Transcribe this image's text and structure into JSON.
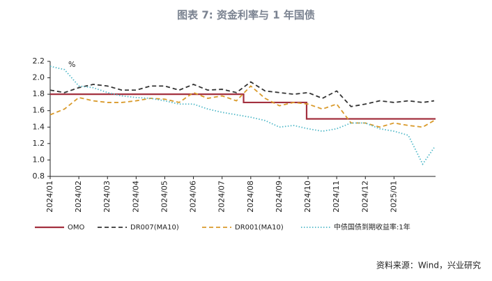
{
  "chart_data": {
    "type": "line",
    "title": "图表 7:  资金利率与 1 年国债",
    "y_unit": "%",
    "source": "资料来源：Wind，兴业研究",
    "xlim": [
      0,
      13.45
    ],
    "xticks": [
      {
        "value": 0,
        "label": "2024/01"
      },
      {
        "value": 1,
        "label": "2024/02"
      },
      {
        "value": 2,
        "label": "2024/03"
      },
      {
        "value": 3,
        "label": "2024/04"
      },
      {
        "value": 4,
        "label": "2024/05"
      },
      {
        "value": 5,
        "label": "2024/06"
      },
      {
        "value": 6,
        "label": "2024/07"
      },
      {
        "value": 7,
        "label": "2024/08"
      },
      {
        "value": 8,
        "label": "2024/09"
      },
      {
        "value": 9,
        "label": "2024/10"
      },
      {
        "value": 10,
        "label": "2024/11"
      },
      {
        "value": 11,
        "label": "2024/12"
      },
      {
        "value": 12,
        "label": "2025/01"
      }
    ],
    "ylim": [
      0.8,
      2.2
    ],
    "yticks": [
      0.8,
      {
        "value": 1.0,
        "label": "1.0"
      },
      1.2,
      1.4,
      1.6,
      1.8,
      {
        "value": 2.0,
        "label": "2.0"
      },
      2.2
    ],
    "x": [
      0,
      0.5,
      1,
      1.5,
      2,
      2.5,
      3,
      3.5,
      4,
      4.5,
      5,
      5.5,
      6,
      6.5,
      7,
      7.5,
      8,
      8.5,
      9,
      9.5,
      10,
      10.5,
      11,
      11.5,
      12,
      12.5,
      13,
      13.4
    ],
    "series": [
      {
        "name": "OMO",
        "color": "#a3303f",
        "dash": "none",
        "width": 2.2,
        "x": [
          0,
          6.75,
          6.75,
          8.95,
          8.95,
          13.45
        ],
        "values": [
          1.8,
          1.8,
          1.7,
          1.7,
          1.5,
          1.5
        ]
      },
      {
        "name": "DR007(MA10)",
        "color": "#333333",
        "dash": "6 4",
        "width": 1.8,
        "values": [
          1.85,
          1.82,
          1.88,
          1.92,
          1.9,
          1.85,
          1.85,
          1.9,
          1.9,
          1.85,
          1.92,
          1.85,
          1.86,
          1.82,
          1.95,
          1.84,
          1.82,
          1.8,
          1.82,
          1.75,
          1.84,
          1.65,
          1.68,
          1.72,
          1.7,
          1.72,
          1.7,
          1.72
        ]
      },
      {
        "name": "DR001(MA10)",
        "color": "#d99a2b",
        "dash": "6 4",
        "width": 1.8,
        "values": [
          1.55,
          1.62,
          1.76,
          1.72,
          1.7,
          1.7,
          1.72,
          1.75,
          1.74,
          1.7,
          1.82,
          1.75,
          1.78,
          1.72,
          1.9,
          1.75,
          1.66,
          1.7,
          1.68,
          1.62,
          1.68,
          1.45,
          1.45,
          1.4,
          1.45,
          1.42,
          1.4,
          1.48
        ]
      },
      {
        "name": "中债国债到期收益率:1年",
        "color": "#4fb8c8",
        "dash": "1.5 2.5",
        "width": 1.8,
        "values": [
          2.14,
          2.1,
          1.9,
          1.88,
          1.82,
          1.78,
          1.76,
          1.75,
          1.72,
          1.68,
          1.68,
          1.62,
          1.58,
          1.55,
          1.52,
          1.48,
          1.4,
          1.42,
          1.38,
          1.35,
          1.38,
          1.45,
          1.45,
          1.38,
          1.35,
          1.3,
          0.95,
          1.15
        ]
      }
    ]
  }
}
